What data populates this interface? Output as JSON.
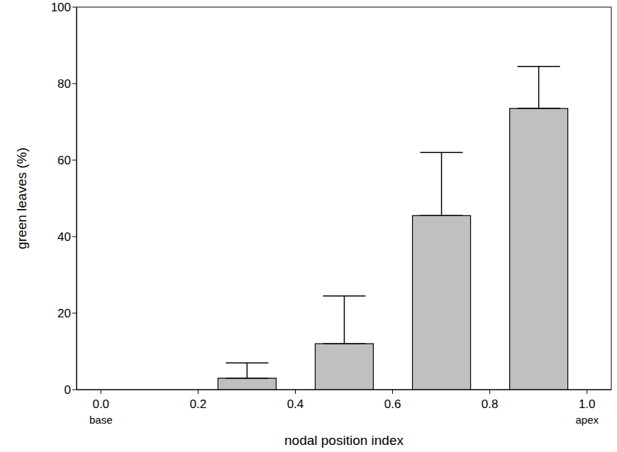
{
  "chart_data": {
    "type": "bar",
    "x_label": "nodal position index",
    "y_label": "green leaves (%)",
    "x": [
      0.3,
      0.5,
      0.7,
      0.9
    ],
    "values": [
      3,
      12,
      45.5,
      73.5
    ],
    "errors": [
      4,
      12.5,
      16.5,
      11
    ],
    "color": "#c0c0c0",
    "xlim": [
      -0.05,
      1.05
    ],
    "xticks": [
      {
        "value": 0,
        "label": "0.0"
      },
      0.2,
      0.4,
      0.6,
      0.8,
      {
        "value": 1,
        "label": "1.0"
      }
    ],
    "ylim": [
      0,
      100
    ],
    "yticks": [
      0,
      20,
      40,
      60,
      80,
      100
    ],
    "annotations": [
      {
        "text": "base",
        "x": 0
      },
      {
        "text": "apex",
        "x": 1
      }
    ],
    "grid": false
  }
}
